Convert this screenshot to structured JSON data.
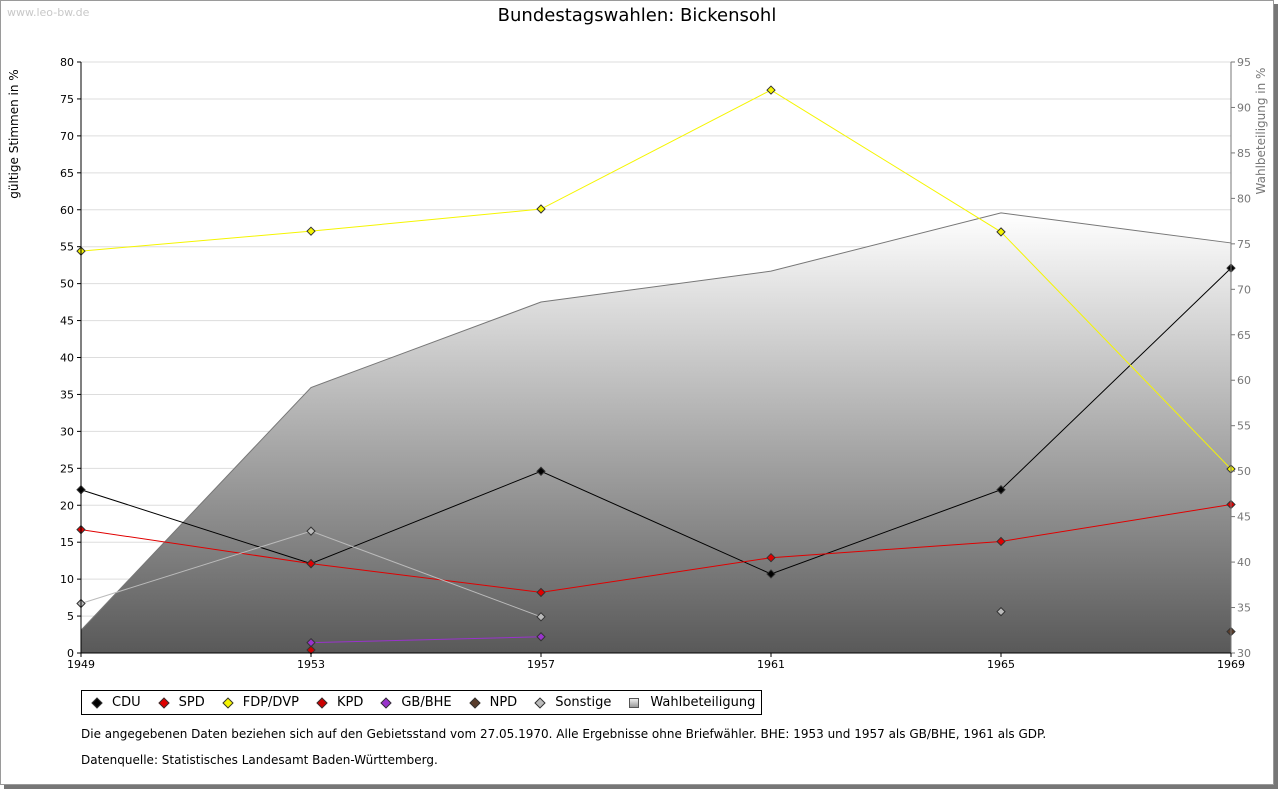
{
  "watermark": "www.leo-bw.de",
  "chart_data": {
    "type": "line",
    "title": "Bundestagswahlen: Bickensohl",
    "x": [
      1949,
      1953,
      1957,
      1961,
      1965,
      1969
    ],
    "xticks": [
      "1949",
      "1953",
      "1957",
      "1961",
      "1965",
      "1969"
    ],
    "ylabel": "gültige Stimmen in %",
    "y2label": "Wahlbeteiligung in %",
    "ylim": [
      0,
      80
    ],
    "y2lim": [
      30,
      95
    ],
    "yticks": [
      0,
      5,
      10,
      15,
      20,
      25,
      30,
      35,
      40,
      45,
      50,
      55,
      60,
      65,
      70,
      75,
      80
    ],
    "y2ticks": [
      30,
      35,
      40,
      45,
      50,
      55,
      60,
      65,
      70,
      75,
      80,
      85,
      90,
      95
    ],
    "grid": true,
    "series": [
      {
        "name": "CDU",
        "color": "#000000",
        "axis": "left",
        "values": [
          22.1,
          12.1,
          24.6,
          10.7,
          22.1,
          52.1
        ]
      },
      {
        "name": "SPD",
        "color": "#e00000",
        "axis": "left",
        "values": [
          16.7,
          12.1,
          8.2,
          12.9,
          15.1,
          20.1
        ]
      },
      {
        "name": "FDP/DVP",
        "color": "#f5f500",
        "axis": "left",
        "values": [
          54.4,
          57.1,
          60.1,
          76.2,
          57.0,
          24.9
        ]
      },
      {
        "name": "KPD",
        "color": "#cc0000",
        "axis": "left",
        "values": [
          null,
          0.4,
          null,
          null,
          null,
          null
        ]
      },
      {
        "name": "GB/BHE",
        "color": "#9933cc",
        "axis": "left",
        "values": [
          null,
          1.4,
          2.2,
          null,
          null,
          null
        ]
      },
      {
        "name": "NPD",
        "color": "#5a3d2b",
        "axis": "left",
        "values": [
          null,
          null,
          null,
          null,
          null,
          2.9
        ]
      },
      {
        "name": "Sonstige",
        "color": "#bbbbbb",
        "axis": "left",
        "values": [
          6.7,
          16.5,
          4.9,
          null,
          5.6,
          null
        ]
      },
      {
        "name": "Wahlbeteiligung",
        "color": "#777777",
        "axis": "right",
        "type": "area",
        "values": [
          32.5,
          59.2,
          68.6,
          72.0,
          78.4,
          75.1
        ]
      }
    ]
  },
  "notes": {
    "line1": "Die angegebenen Daten beziehen sich auf den Gebietsstand vom 27.05.1970. Alle Ergebnisse ohne Briefwähler. BHE: 1953 und 1957 als GB/BHE, 1961 als GDP.",
    "line2": "Datenquelle: Statistisches Landesamt Baden-Württemberg."
  }
}
